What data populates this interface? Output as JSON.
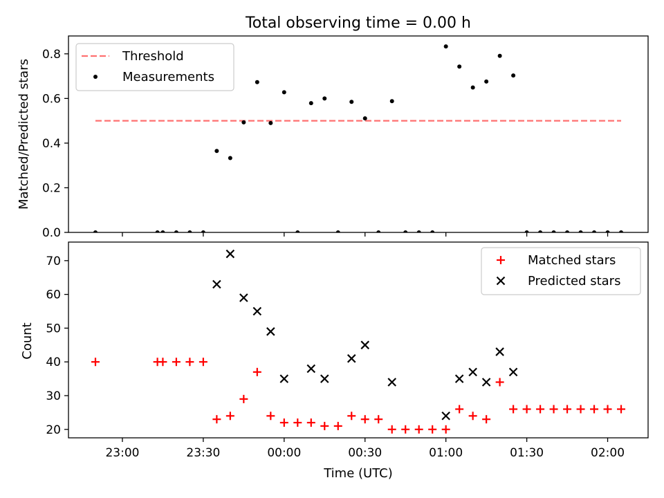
{
  "chart_data": [
    {
      "type": "scatter",
      "title": "Total observing time = 0.00 h",
      "xlabel": "",
      "ylabel": "Matched/Predicted stars",
      "ylim": [
        0,
        0.88
      ],
      "yticks": [
        "0.0",
        "0.2",
        "0.4",
        "0.6",
        "0.8"
      ],
      "ytick_values": [
        0,
        0.2,
        0.4,
        0.6,
        0.8
      ],
      "xlim": [
        "22:40",
        "02:15"
      ],
      "xtick_values": [
        "23:00",
        "23:30",
        "00:00",
        "00:30",
        "01:00",
        "01:30",
        "02:00"
      ],
      "legend_position": "top-left",
      "threshold": {
        "name": "Threshold",
        "value": 0.5,
        "color": "#ff7070",
        "x_range": [
          "22:50",
          "02:05"
        ]
      },
      "series": [
        {
          "name": "Measurements",
          "color": "#000000",
          "marker": "dot",
          "x": [
            "22:50",
            "23:13",
            "23:15",
            "23:20",
            "23:25",
            "23:30",
            "23:35",
            "23:40",
            "23:45",
            "23:50",
            "23:55",
            "00:00",
            "00:05",
            "00:10",
            "00:15",
            "00:20",
            "00:25",
            "00:30",
            "00:35",
            "00:40",
            "00:45",
            "00:50",
            "00:55",
            "01:00",
            "01:05",
            "01:10",
            "01:15",
            "01:20",
            "01:25",
            "01:30",
            "01:35",
            "01:40",
            "01:45",
            "01:50",
            "01:55",
            "02:00",
            "02:05"
          ],
          "y": [
            0,
            0,
            0,
            0,
            0,
            0,
            0.365,
            0.333,
            0.493,
            0.673,
            0.49,
            0.628,
            0,
            0.579,
            0.6,
            0,
            0.585,
            0.511,
            0,
            0.588,
            0,
            0,
            0,
            0.833,
            0.743,
            0.649,
            0.676,
            0.791,
            0.703,
            0,
            0,
            0,
            0,
            0,
            0,
            0,
            0
          ]
        }
      ]
    },
    {
      "type": "scatter",
      "title": "",
      "xlabel": "Time (UTC)",
      "ylabel": "Count",
      "ylim": [
        17.5,
        75.5
      ],
      "yticks": [
        "20",
        "30",
        "40",
        "50",
        "60",
        "70"
      ],
      "ytick_values": [
        20,
        30,
        40,
        50,
        60,
        70
      ],
      "xlim": [
        "22:40",
        "02:15"
      ],
      "xticks": [
        "23:00",
        "23:30",
        "00:00",
        "00:30",
        "01:00",
        "01:30",
        "02:00"
      ],
      "legend_position": "top-right",
      "series": [
        {
          "name": "Matched stars",
          "color": "#ff0000",
          "marker": "plus",
          "x": [
            "22:50",
            "23:13",
            "23:15",
            "23:20",
            "23:25",
            "23:30",
            "23:35",
            "23:40",
            "23:45",
            "23:50",
            "23:55",
            "00:00",
            "00:05",
            "00:10",
            "00:15",
            "00:20",
            "00:25",
            "00:30",
            "00:35",
            "00:40",
            "00:45",
            "00:50",
            "00:55",
            "01:00",
            "01:05",
            "01:10",
            "01:15",
            "01:20",
            "01:25",
            "01:30",
            "01:35",
            "01:40",
            "01:45",
            "01:50",
            "01:55",
            "02:00",
            "02:05"
          ],
          "y": [
            40,
            40,
            40,
            40,
            40,
            40,
            23,
            24,
            29,
            37,
            24,
            22,
            22,
            22,
            21,
            21,
            24,
            23,
            23,
            20,
            20,
            20,
            20,
            20,
            26,
            24,
            23,
            34,
            26,
            26,
            26,
            26,
            26,
            26,
            26,
            26,
            26
          ]
        },
        {
          "name": "Predicted stars",
          "color": "#000000",
          "marker": "x",
          "x": [
            "23:35",
            "23:40",
            "23:45",
            "23:50",
            "23:55",
            "00:00",
            "00:10",
            "00:15",
            "00:25",
            "00:30",
            "00:40",
            "01:00",
            "01:05",
            "01:10",
            "01:15",
            "01:20",
            "01:25"
          ],
          "y": [
            63,
            72,
            59,
            55,
            49,
            35,
            38,
            35,
            41,
            45,
            34,
            24,
            35,
            37,
            34,
            43,
            37
          ]
        }
      ]
    }
  ]
}
